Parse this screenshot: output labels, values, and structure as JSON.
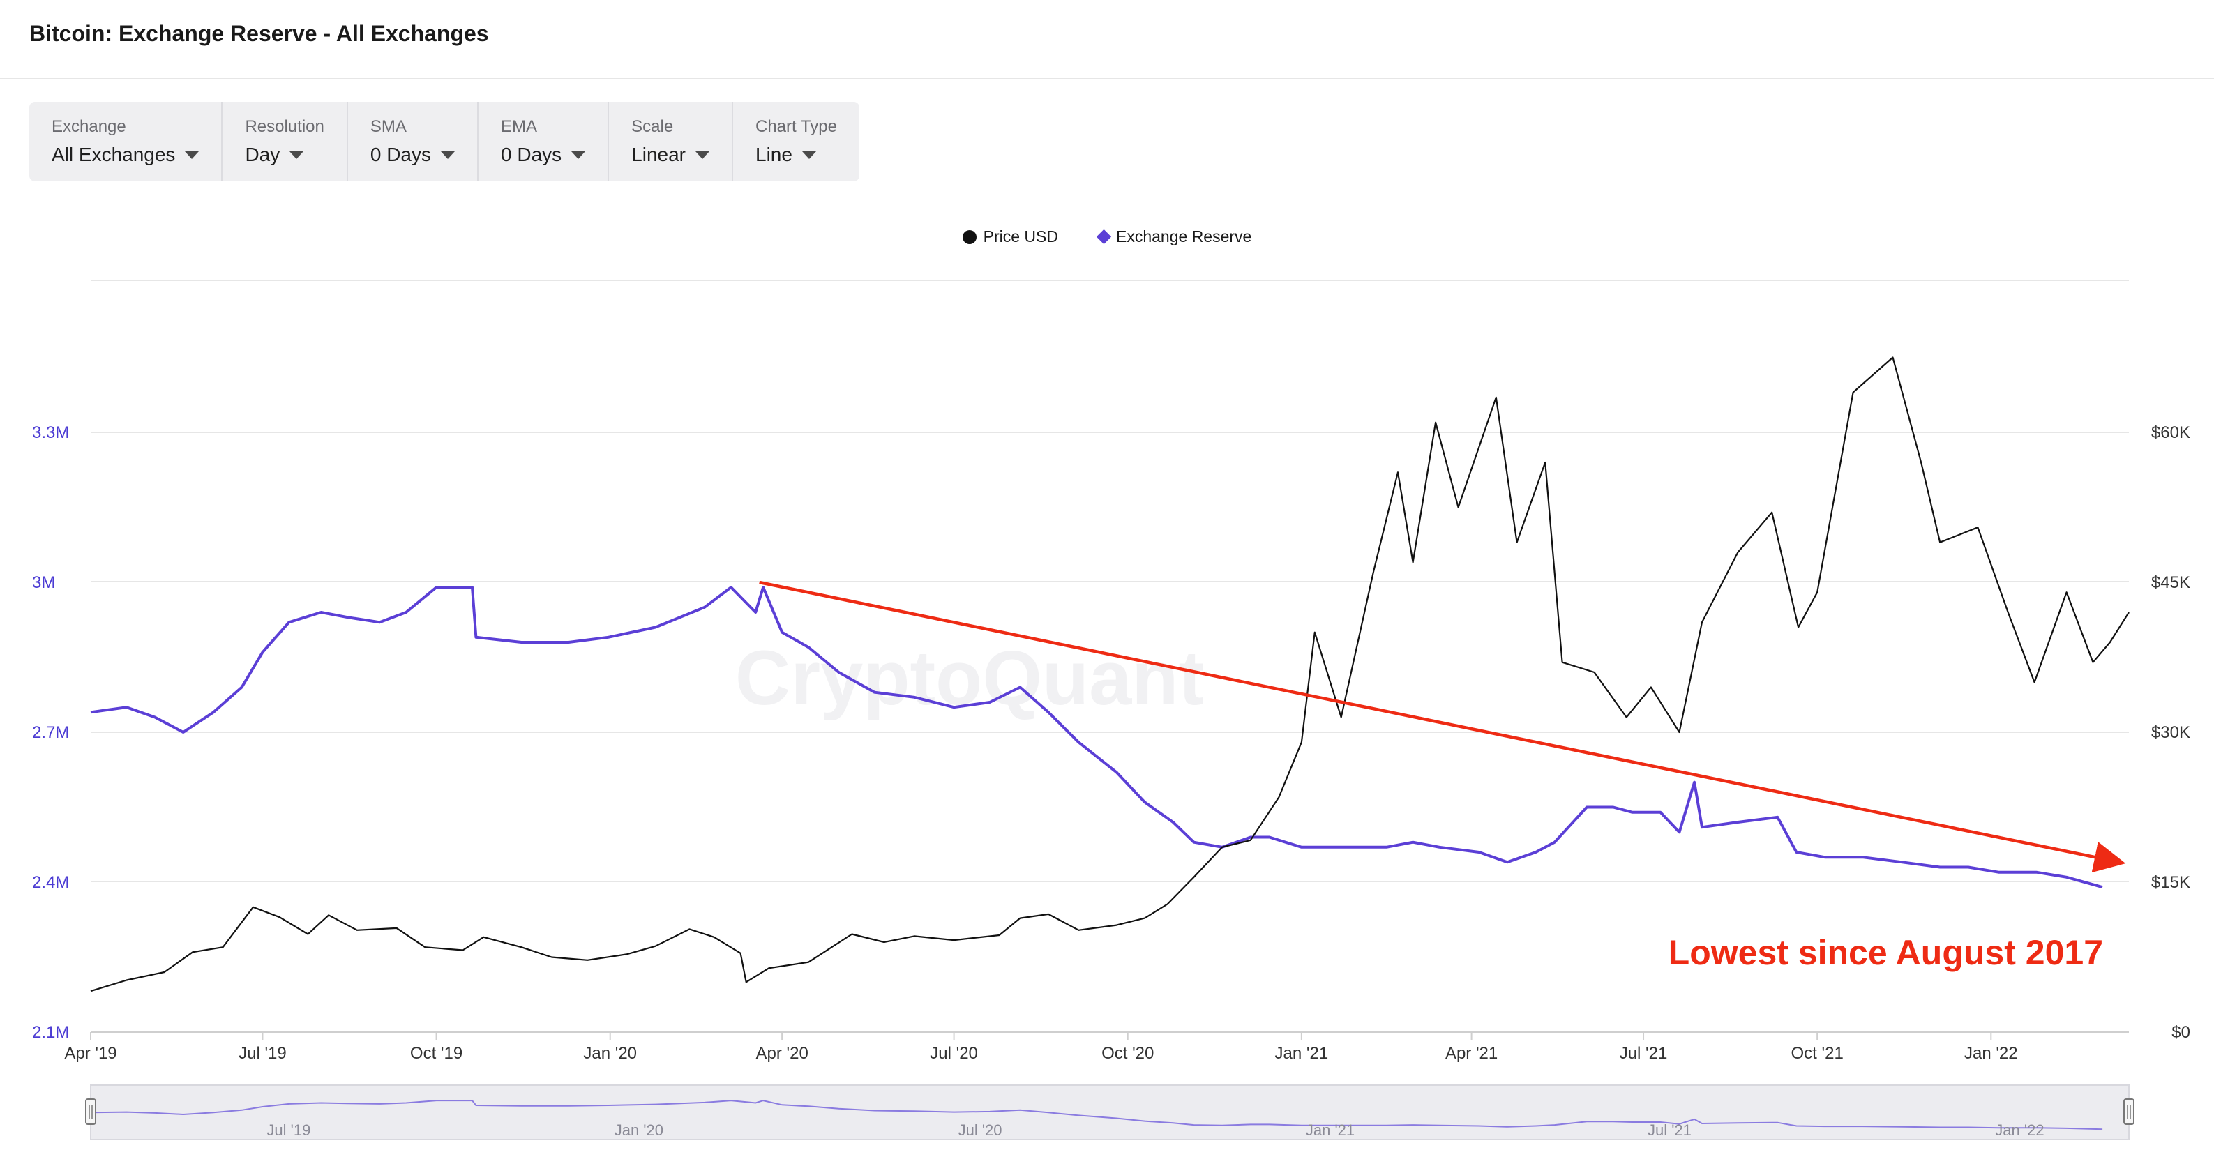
{
  "title": "Bitcoin: Exchange Reserve - All Exchanges",
  "controls": [
    {
      "label": "Exchange",
      "value": "All Exchanges"
    },
    {
      "label": "Resolution",
      "value": "Day"
    },
    {
      "label": "SMA",
      "value": "0 Days"
    },
    {
      "label": "EMA",
      "value": "0 Days"
    },
    {
      "label": "Scale",
      "value": "Linear"
    },
    {
      "label": "Chart Type",
      "value": "Line"
    }
  ],
  "legend": [
    {
      "name": "Price USD",
      "color": "#111111",
      "marker": "circle"
    },
    {
      "name": "Exchange Reserve",
      "color": "#5b3fd6",
      "marker": "diamond"
    }
  ],
  "watermark": "CryptoQuant",
  "annotation": "Lowest since August 2017",
  "chart_data": {
    "type": "line",
    "x_start": "2019-04-01",
    "x_end": "2022-03-15",
    "x_tick_labels": [
      "Apr '19",
      "Jul '19",
      "Oct '19",
      "Jan '20",
      "Apr '20",
      "Jul '20",
      "Oct '20",
      "Jan '21",
      "Apr '21",
      "Jul '21",
      "Oct '21",
      "Jan '22"
    ],
    "navigator_tick_labels": [
      "Jul '19",
      "Jan '20",
      "Jul '20",
      "Jan '21",
      "Jul '21",
      "Jan '22"
    ],
    "y_left": {
      "series": "Exchange Reserve",
      "ticks": [
        "2.1M",
        "2.4M",
        "2.7M",
        "3M",
        "3.3M"
      ],
      "min": 2100000,
      "max": 3300000
    },
    "y_right": {
      "series": "Price USD",
      "ticks": [
        "$0",
        "$15K",
        "$30K",
        "$45K",
        "$60K"
      ],
      "min": 0,
      "max": 60000
    },
    "series": [
      {
        "name": "Exchange Reserve",
        "axis": "left",
        "color": "#5b3fd6",
        "points": [
          [
            "2019-04-01",
            2740000
          ],
          [
            "2019-04-20",
            2750000
          ],
          [
            "2019-05-05",
            2730000
          ],
          [
            "2019-05-20",
            2700000
          ],
          [
            "2019-06-05",
            2740000
          ],
          [
            "2019-06-20",
            2790000
          ],
          [
            "2019-07-01",
            2860000
          ],
          [
            "2019-07-15",
            2920000
          ],
          [
            "2019-08-01",
            2940000
          ],
          [
            "2019-08-15",
            2930000
          ],
          [
            "2019-09-01",
            2920000
          ],
          [
            "2019-09-15",
            2940000
          ],
          [
            "2019-10-01",
            2990000
          ],
          [
            "2019-10-10",
            2990000
          ],
          [
            "2019-10-20",
            2990000
          ],
          [
            "2019-10-22",
            2890000
          ],
          [
            "2019-11-15",
            2880000
          ],
          [
            "2019-12-10",
            2880000
          ],
          [
            "2019-12-31",
            2890000
          ],
          [
            "2020-01-25",
            2910000
          ],
          [
            "2020-02-20",
            2950000
          ],
          [
            "2020-03-05",
            2990000
          ],
          [
            "2020-03-18",
            2940000
          ],
          [
            "2020-03-22",
            2990000
          ],
          [
            "2020-04-01",
            2900000
          ],
          [
            "2020-04-15",
            2870000
          ],
          [
            "2020-05-01",
            2820000
          ],
          [
            "2020-05-20",
            2780000
          ],
          [
            "2020-06-10",
            2770000
          ],
          [
            "2020-07-01",
            2750000
          ],
          [
            "2020-07-20",
            2760000
          ],
          [
            "2020-08-05",
            2790000
          ],
          [
            "2020-08-20",
            2740000
          ],
          [
            "2020-09-05",
            2680000
          ],
          [
            "2020-09-25",
            2620000
          ],
          [
            "2020-10-10",
            2560000
          ],
          [
            "2020-10-25",
            2520000
          ],
          [
            "2020-11-05",
            2480000
          ],
          [
            "2020-11-20",
            2470000
          ],
          [
            "2020-12-05",
            2490000
          ],
          [
            "2020-12-15",
            2490000
          ],
          [
            "2021-01-01",
            2470000
          ],
          [
            "2021-01-25",
            2470000
          ],
          [
            "2021-02-15",
            2470000
          ],
          [
            "2021-03-01",
            2480000
          ],
          [
            "2021-03-15",
            2470000
          ],
          [
            "2021-04-05",
            2460000
          ],
          [
            "2021-04-20",
            2440000
          ],
          [
            "2021-05-05",
            2460000
          ],
          [
            "2021-05-15",
            2480000
          ],
          [
            "2021-06-01",
            2550000
          ],
          [
            "2021-06-15",
            2550000
          ],
          [
            "2021-06-25",
            2540000
          ],
          [
            "2021-07-10",
            2540000
          ],
          [
            "2021-07-20",
            2500000
          ],
          [
            "2021-07-28",
            2600000
          ],
          [
            "2021-08-01",
            2510000
          ],
          [
            "2021-08-20",
            2520000
          ],
          [
            "2021-09-10",
            2530000
          ],
          [
            "2021-09-20",
            2460000
          ],
          [
            "2021-10-05",
            2450000
          ],
          [
            "2021-10-25",
            2450000
          ],
          [
            "2021-11-15",
            2440000
          ],
          [
            "2021-12-05",
            2430000
          ],
          [
            "2021-12-20",
            2430000
          ],
          [
            "2022-01-05",
            2420000
          ],
          [
            "2022-01-25",
            2420000
          ],
          [
            "2022-02-10",
            2410000
          ],
          [
            "2022-03-01",
            2390000
          ]
        ]
      },
      {
        "name": "Price USD",
        "axis": "right",
        "color": "#111111",
        "points": [
          [
            "2019-04-01",
            4100
          ],
          [
            "2019-04-20",
            5200
          ],
          [
            "2019-05-10",
            6000
          ],
          [
            "2019-05-25",
            8000
          ],
          [
            "2019-06-10",
            8500
          ],
          [
            "2019-06-26",
            12500
          ],
          [
            "2019-07-10",
            11500
          ],
          [
            "2019-07-25",
            9800
          ],
          [
            "2019-08-05",
            11700
          ],
          [
            "2019-08-20",
            10200
          ],
          [
            "2019-09-10",
            10400
          ],
          [
            "2019-09-25",
            8500
          ],
          [
            "2019-10-15",
            8200
          ],
          [
            "2019-10-26",
            9500
          ],
          [
            "2019-11-15",
            8500
          ],
          [
            "2019-12-01",
            7500
          ],
          [
            "2019-12-20",
            7200
          ],
          [
            "2020-01-10",
            7800
          ],
          [
            "2020-01-25",
            8600
          ],
          [
            "2020-02-12",
            10300
          ],
          [
            "2020-02-25",
            9500
          ],
          [
            "2020-03-10",
            7900
          ],
          [
            "2020-03-13",
            5000
          ],
          [
            "2020-03-25",
            6400
          ],
          [
            "2020-04-15",
            7000
          ],
          [
            "2020-05-08",
            9800
          ],
          [
            "2020-05-25",
            9000
          ],
          [
            "2020-06-10",
            9600
          ],
          [
            "2020-07-01",
            9200
          ],
          [
            "2020-07-25",
            9700
          ],
          [
            "2020-08-05",
            11400
          ],
          [
            "2020-08-20",
            11800
          ],
          [
            "2020-09-05",
            10200
          ],
          [
            "2020-09-25",
            10700
          ],
          [
            "2020-10-10",
            11400
          ],
          [
            "2020-10-22",
            12800
          ],
          [
            "2020-11-05",
            15500
          ],
          [
            "2020-11-20",
            18500
          ],
          [
            "2020-12-05",
            19200
          ],
          [
            "2020-12-20",
            23500
          ],
          [
            "2021-01-01",
            29000
          ],
          [
            "2021-01-08",
            40000
          ],
          [
            "2021-01-22",
            31500
          ],
          [
            "2021-02-08",
            46000
          ],
          [
            "2021-02-21",
            56000
          ],
          [
            "2021-03-01",
            47000
          ],
          [
            "2021-03-13",
            61000
          ],
          [
            "2021-03-25",
            52500
          ],
          [
            "2021-04-14",
            63500
          ],
          [
            "2021-04-25",
            49000
          ],
          [
            "2021-05-10",
            57000
          ],
          [
            "2021-05-19",
            37000
          ],
          [
            "2021-06-05",
            36000
          ],
          [
            "2021-06-22",
            31500
          ],
          [
            "2021-07-05",
            34500
          ],
          [
            "2021-07-20",
            30000
          ],
          [
            "2021-08-01",
            41000
          ],
          [
            "2021-08-20",
            48000
          ],
          [
            "2021-09-07",
            52000
          ],
          [
            "2021-09-21",
            40500
          ],
          [
            "2021-10-01",
            44000
          ],
          [
            "2021-10-20",
            64000
          ],
          [
            "2021-11-10",
            67500
          ],
          [
            "2021-11-25",
            57000
          ],
          [
            "2021-12-05",
            49000
          ],
          [
            "2021-12-25",
            50500
          ],
          [
            "2022-01-10",
            42000
          ],
          [
            "2022-01-24",
            35000
          ],
          [
            "2022-02-10",
            44000
          ],
          [
            "2022-02-24",
            37000
          ],
          [
            "2022-03-05",
            39000
          ],
          [
            "2022-03-15",
            42000
          ]
        ]
      }
    ],
    "trend_arrow": {
      "color": "#ee2b14",
      "from": [
        "2020-03-20",
        3000000
      ],
      "to": [
        "2022-03-10",
        2440000
      ]
    },
    "grid": true,
    "legend_position": "top-center"
  }
}
